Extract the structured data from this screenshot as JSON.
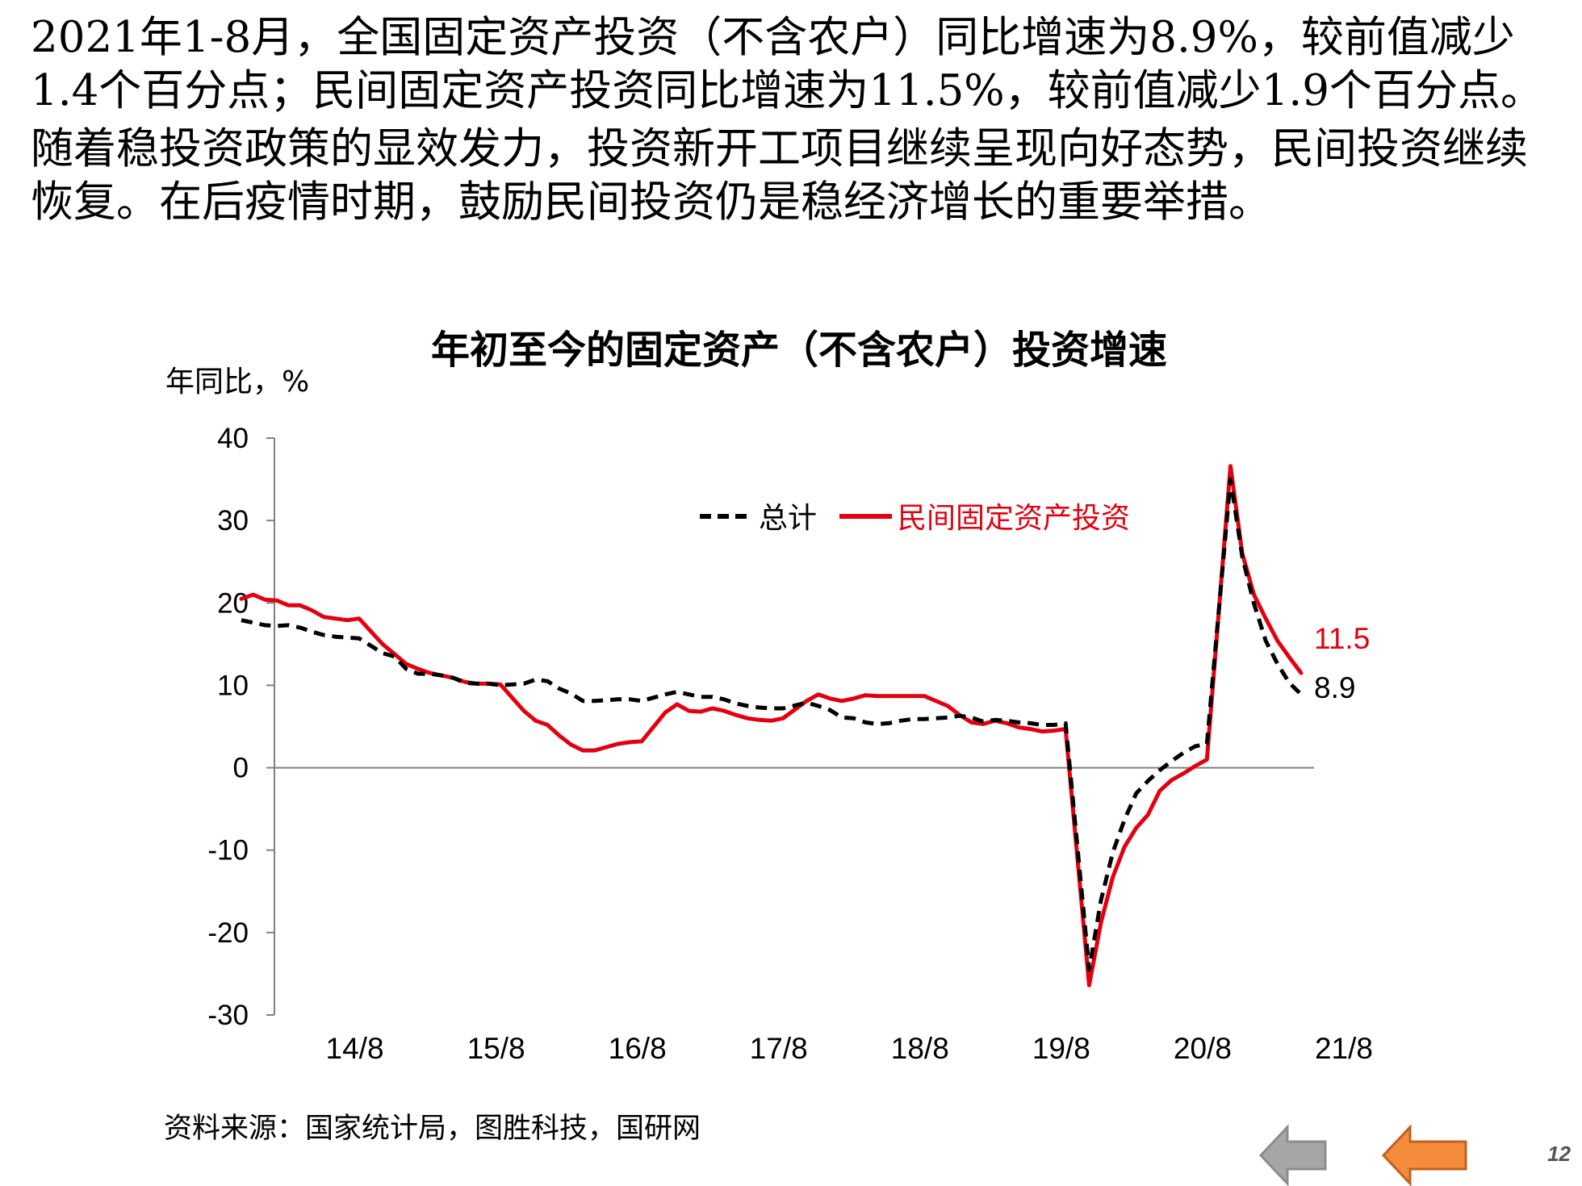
{
  "intro": {
    "paragraph1": "2021年1-8月，全国固定资产投资（不含农户）同比增速为8.9%，较前值减少1.4个百分点；民间固定资产投资同比增速为11.5%，较前值减少1.9个百分点。",
    "paragraph2": "随着稳投资政策的显效发力，投资新开工项目继续呈现向好态势，民间投资继续恢复。在后疫情时期，鼓励民间投资仍是稳经济增长的重要举措。"
  },
  "source": "资料来源：国家统计局，图胜科技，国研网",
  "page_number": "12",
  "nav": {
    "back_icon": "gray-left-arrow-icon",
    "prev_icon": "orange-left-arrow-icon",
    "back_color": "#a6a6a6",
    "prev_color": "#f58c3c"
  },
  "colors": {
    "total": "#000000",
    "private": "#e3000f"
  },
  "chart_data": {
    "type": "line",
    "title": "年初至今的固定资产（不含农户）投资增速",
    "ylabel": "年同比，%",
    "xlabel": "",
    "ylim": [
      -30,
      40
    ],
    "yticks": [
      "40",
      "30",
      "20",
      "10",
      "0",
      "-10",
      "-20",
      "-30"
    ],
    "ytick_values": [
      40,
      30,
      20,
      10,
      0,
      -10,
      -20,
      -30
    ],
    "xticks": [
      "14/8",
      "15/8",
      "16/8",
      "17/8",
      "18/8",
      "19/8",
      "20/8",
      "21/8"
    ],
    "grid": false,
    "legend_position": "top-right",
    "x_start": "2014-02",
    "x_end": "2021-08",
    "x": [
      "2014-02",
      "2014-03",
      "2014-04",
      "2014-05",
      "2014-06",
      "2014-07",
      "2014-08",
      "2014-09",
      "2014-10",
      "2014-11",
      "2014-12",
      "2015-02",
      "2015-03",
      "2015-04",
      "2015-05",
      "2015-06",
      "2015-07",
      "2015-08",
      "2015-09",
      "2015-10",
      "2015-11",
      "2015-12",
      "2016-02",
      "2016-03",
      "2016-04",
      "2016-05",
      "2016-06",
      "2016-07",
      "2016-08",
      "2016-09",
      "2016-10",
      "2016-11",
      "2016-12",
      "2017-02",
      "2017-03",
      "2017-04",
      "2017-05",
      "2017-06",
      "2017-07",
      "2017-08",
      "2017-09",
      "2017-10",
      "2017-11",
      "2017-12",
      "2018-02",
      "2018-03",
      "2018-04",
      "2018-05",
      "2018-06",
      "2018-07",
      "2018-08",
      "2018-09",
      "2018-10",
      "2018-11",
      "2018-12",
      "2019-02",
      "2019-03",
      "2019-04",
      "2019-05",
      "2019-06",
      "2019-07",
      "2019-08",
      "2019-09",
      "2019-10",
      "2019-11",
      "2019-12",
      "2020-02",
      "2020-03",
      "2020-04",
      "2020-05",
      "2020-06",
      "2020-07",
      "2020-08",
      "2020-09",
      "2020-10",
      "2020-11",
      "2020-12",
      "2021-02",
      "2021-03",
      "2021-04",
      "2021-05",
      "2021-06",
      "2021-07",
      "2021-08"
    ],
    "series": [
      {
        "name": "总计",
        "color": "#000000",
        "style": "dashed",
        "values": [
          17.9,
          17.6,
          17.3,
          17.2,
          17.3,
          17.0,
          16.5,
          16.1,
          15.9,
          15.8,
          15.7,
          13.9,
          13.5,
          12.0,
          11.4,
          11.4,
          11.2,
          10.9,
          10.3,
          10.2,
          10.2,
          10.0,
          10.2,
          10.7,
          10.5,
          9.6,
          9.0,
          8.1,
          8.1,
          8.2,
          8.3,
          8.3,
          8.1,
          8.9,
          9.2,
          8.9,
          8.6,
          8.6,
          8.3,
          7.8,
          7.5,
          7.3,
          7.2,
          7.2,
          7.9,
          7.5,
          7.0,
          6.1,
          6.0,
          5.5,
          5.3,
          5.4,
          5.7,
          5.9,
          5.9,
          6.1,
          6.3,
          6.1,
          5.6,
          5.8,
          5.7,
          5.5,
          5.4,
          5.2,
          5.2,
          5.4,
          -24.5,
          -16.1,
          -10.3,
          -6.3,
          -3.1,
          -1.6,
          -0.3,
          0.8,
          1.8,
          2.6,
          2.9,
          35.0,
          25.6,
          19.9,
          15.4,
          12.6,
          10.3,
          8.9
        ]
      },
      {
        "name": "民间固定资产投资",
        "color": "#e3000f",
        "style": "solid",
        "values": [
          20.5,
          21.0,
          20.4,
          20.3,
          19.7,
          19.7,
          19.1,
          18.3,
          18.1,
          17.9,
          18.1,
          15.0,
          13.8,
          12.6,
          12.0,
          11.5,
          11.2,
          10.9,
          10.4,
          10.2,
          10.2,
          10.1,
          6.9,
          5.7,
          5.2,
          3.9,
          2.8,
          2.1,
          2.1,
          2.5,
          2.9,
          3.1,
          3.2,
          6.7,
          7.7,
          6.9,
          6.8,
          7.2,
          6.9,
          6.4,
          6.0,
          5.8,
          5.7,
          6.0,
          8.1,
          8.9,
          8.4,
          8.1,
          8.4,
          8.8,
          8.7,
          8.7,
          8.7,
          8.7,
          8.7,
          7.5,
          6.4,
          5.5,
          5.3,
          5.7,
          5.4,
          4.9,
          4.7,
          4.4,
          4.5,
          4.7,
          -26.4,
          -18.8,
          -13.3,
          -9.6,
          -7.3,
          -5.7,
          -2.8,
          -1.5,
          -0.7,
          0.2,
          1.0,
          36.6,
          26.0,
          21.0,
          18.1,
          15.4,
          13.4,
          11.5
        ]
      }
    ],
    "end_labels": [
      "8.9",
      "11.5"
    ]
  }
}
